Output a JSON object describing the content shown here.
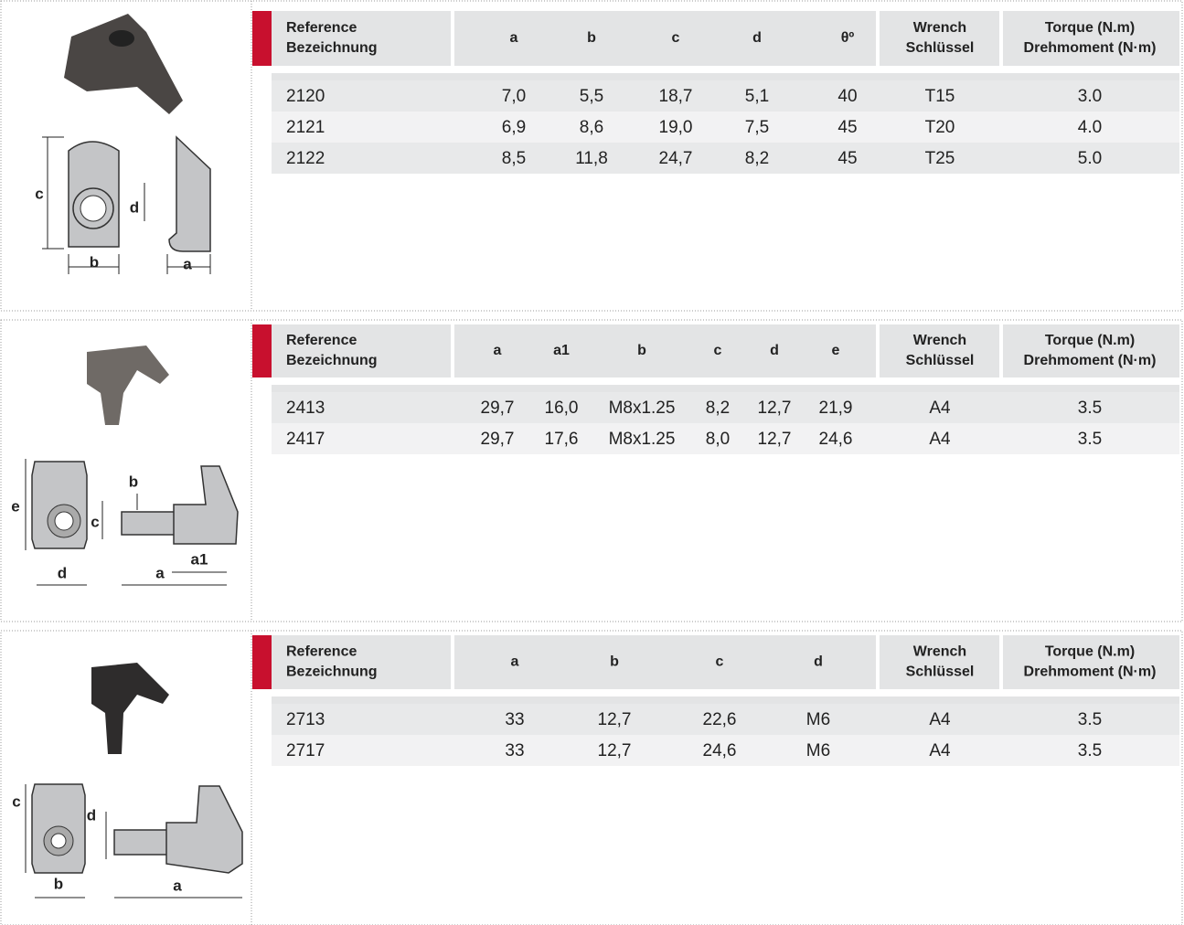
{
  "sections": [
    {
      "headers": [
        [
          "Reference",
          "Bezeichnung"
        ],
        [
          "a"
        ],
        [
          "b"
        ],
        [
          "c"
        ],
        [
          "d"
        ],
        [
          "θº"
        ],
        [
          "Wrench",
          "Schlüssel"
        ],
        [
          "Torque (N.m)",
          "Drehmoment (N·m)"
        ]
      ],
      "rows": [
        [
          "2120",
          "7,0",
          "5,5",
          "18,7",
          "5,1",
          "40",
          "T15",
          "3.0"
        ],
        [
          "2121",
          "6,9",
          "8,6",
          "19,0",
          "7,5",
          "45",
          "T20",
          "4.0"
        ],
        [
          "2122",
          "8,5",
          "11,8",
          "24,7",
          "8,2",
          "45",
          "T25",
          "5.0"
        ]
      ],
      "figure_labels": [
        "c",
        "d",
        "b",
        "a"
      ]
    },
    {
      "headers": [
        [
          "Reference",
          "Bezeichnung"
        ],
        [
          "a"
        ],
        [
          "a1"
        ],
        [
          "b"
        ],
        [
          "c"
        ],
        [
          "d"
        ],
        [
          "e"
        ],
        [
          "Wrench",
          "Schlüssel"
        ],
        [
          "Torque (N.m)",
          "Drehmoment (N·m)"
        ]
      ],
      "rows": [
        [
          "2413",
          "29,7",
          "16,0",
          "M8x1.25",
          "8,2",
          "12,7",
          "21,9",
          "A4",
          "3.5"
        ],
        [
          "2417",
          "29,7",
          "17,6",
          "M8x1.25",
          "8,0",
          "12,7",
          "24,6",
          "A4",
          "3.5"
        ]
      ],
      "figure_labels": [
        "e",
        "b",
        "c",
        "d",
        "a",
        "a1"
      ]
    },
    {
      "headers": [
        [
          "Reference",
          "Bezeichnung"
        ],
        [
          "a"
        ],
        [
          "b"
        ],
        [
          "c"
        ],
        [
          "d"
        ],
        [
          "Wrench",
          "Schlüssel"
        ],
        [
          "Torque (N.m)",
          "Drehmoment (N·m)"
        ]
      ],
      "rows": [
        [
          "2713",
          "33",
          "12,7",
          "22,6",
          "M6",
          "A4",
          "3.5"
        ],
        [
          "2717",
          "33",
          "12,7",
          "24,6",
          "M6",
          "A4",
          "3.5"
        ]
      ],
      "figure_labels": [
        "c",
        "d",
        "b",
        "a"
      ]
    }
  ]
}
